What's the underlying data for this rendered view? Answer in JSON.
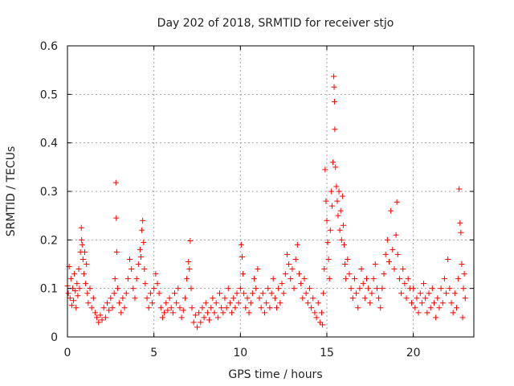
{
  "chart_data": {
    "type": "scatter",
    "title": "Day 202 of 2018, SRMTID for receiver stjo",
    "xlabel": "GPS time / hours",
    "ylabel": "SRMTID / TECUs",
    "xlim": [
      0,
      23.5
    ],
    "ylim": [
      0,
      0.6
    ],
    "x_ticks": [
      0,
      5,
      10,
      15,
      20
    ],
    "x_tick_labels": [
      "0",
      "5",
      "10",
      "15",
      "20"
    ],
    "y_ticks": [
      0,
      0.1,
      0.2,
      0.3,
      0.4,
      0.5,
      0.6
    ],
    "y_tick_labels": [
      "0",
      "0.1",
      "0.2",
      "0.3",
      "0.4",
      "0.5",
      "0.6"
    ],
    "grid": true,
    "marker": "plus",
    "series": [
      {
        "name": "SRMTID",
        "color": "#ff0000",
        "points": [
          [
            0.0,
            0.105
          ],
          [
            0.05,
            0.09
          ],
          [
            0.1,
            0.145
          ],
          [
            0.15,
            0.08
          ],
          [
            0.2,
            0.12
          ],
          [
            0.25,
            0.065
          ],
          [
            0.3,
            0.1
          ],
          [
            0.35,
            0.075
          ],
          [
            0.4,
            0.13
          ],
          [
            0.45,
            0.095
          ],
          [
            0.5,
            0.06
          ],
          [
            0.55,
            0.11
          ],
          [
            0.6,
            0.085
          ],
          [
            0.65,
            0.14
          ],
          [
            0.7,
            0.1
          ],
          [
            0.75,
            0.175
          ],
          [
            0.8,
            0.225
          ],
          [
            0.82,
            0.2
          ],
          [
            0.85,
            0.19
          ],
          [
            0.9,
            0.16
          ],
          [
            0.95,
            0.13
          ],
          [
            1.0,
            0.175
          ],
          [
            1.05,
            0.11
          ],
          [
            1.1,
            0.15
          ],
          [
            1.15,
            0.09
          ],
          [
            1.2,
            0.07
          ],
          [
            1.3,
            0.1
          ],
          [
            1.4,
            0.06
          ],
          [
            1.5,
            0.08
          ],
          [
            1.6,
            0.05
          ],
          [
            1.7,
            0.04
          ],
          [
            1.8,
            0.03
          ],
          [
            1.9,
            0.045
          ],
          [
            2.0,
            0.035
          ],
          [
            2.1,
            0.06
          ],
          [
            2.2,
            0.04
          ],
          [
            2.3,
            0.07
          ],
          [
            2.4,
            0.055
          ],
          [
            2.5,
            0.08
          ],
          [
            2.6,
            0.06
          ],
          [
            2.7,
            0.09
          ],
          [
            2.75,
            0.12
          ],
          [
            2.8,
            0.318
          ],
          [
            2.82,
            0.245
          ],
          [
            2.85,
            0.175
          ],
          [
            2.9,
            0.1
          ],
          [
            3.0,
            0.07
          ],
          [
            3.1,
            0.05
          ],
          [
            3.2,
            0.08
          ],
          [
            3.3,
            0.06
          ],
          [
            3.4,
            0.09
          ],
          [
            3.5,
            0.12
          ],
          [
            3.6,
            0.16
          ],
          [
            3.7,
            0.14
          ],
          [
            3.8,
            0.1
          ],
          [
            3.9,
            0.08
          ],
          [
            4.0,
            0.12
          ],
          [
            4.1,
            0.15
          ],
          [
            4.2,
            0.18
          ],
          [
            4.25,
            0.165
          ],
          [
            4.3,
            0.22
          ],
          [
            4.35,
            0.24
          ],
          [
            4.4,
            0.195
          ],
          [
            4.45,
            0.14
          ],
          [
            4.5,
            0.11
          ],
          [
            4.6,
            0.08
          ],
          [
            4.7,
            0.06
          ],
          [
            4.8,
            0.09
          ],
          [
            4.9,
            0.07
          ],
          [
            5.0,
            0.1
          ],
          [
            5.1,
            0.13
          ],
          [
            5.2,
            0.11
          ],
          [
            5.3,
            0.09
          ],
          [
            5.4,
            0.06
          ],
          [
            5.5,
            0.04
          ],
          [
            5.6,
            0.05
          ],
          [
            5.7,
            0.07
          ],
          [
            5.8,
            0.055
          ],
          [
            5.9,
            0.08
          ],
          [
            6.0,
            0.06
          ],
          [
            6.1,
            0.05
          ],
          [
            6.2,
            0.09
          ],
          [
            6.3,
            0.07
          ],
          [
            6.4,
            0.1
          ],
          [
            6.5,
            0.06
          ],
          [
            6.6,
            0.04
          ],
          [
            6.7,
            0.055
          ],
          [
            6.8,
            0.08
          ],
          [
            6.9,
            0.12
          ],
          [
            7.0,
            0.155
          ],
          [
            7.05,
            0.14
          ],
          [
            7.1,
            0.198
          ],
          [
            7.15,
            0.1
          ],
          [
            7.2,
            0.06
          ],
          [
            7.3,
            0.03
          ],
          [
            7.4,
            0.045
          ],
          [
            7.5,
            0.02
          ],
          [
            7.6,
            0.05
          ],
          [
            7.7,
            0.03
          ],
          [
            7.8,
            0.06
          ],
          [
            7.9,
            0.04
          ],
          [
            8.0,
            0.07
          ],
          [
            8.1,
            0.05
          ],
          [
            8.2,
            0.035
          ],
          [
            8.3,
            0.06
          ],
          [
            8.4,
            0.08
          ],
          [
            8.5,
            0.05
          ],
          [
            8.6,
            0.07
          ],
          [
            8.7,
            0.04
          ],
          [
            8.8,
            0.09
          ],
          [
            8.9,
            0.06
          ],
          [
            9.0,
            0.05
          ],
          [
            9.1,
            0.08
          ],
          [
            9.2,
            0.06
          ],
          [
            9.3,
            0.1
          ],
          [
            9.4,
            0.07
          ],
          [
            9.5,
            0.05
          ],
          [
            9.6,
            0.08
          ],
          [
            9.7,
            0.06
          ],
          [
            9.8,
            0.09
          ],
          [
            9.9,
            0.07
          ],
          [
            10.0,
            0.1
          ],
          [
            10.05,
            0.19
          ],
          [
            10.1,
            0.165
          ],
          [
            10.15,
            0.13
          ],
          [
            10.2,
            0.09
          ],
          [
            10.3,
            0.06
          ],
          [
            10.4,
            0.08
          ],
          [
            10.5,
            0.05
          ],
          [
            10.6,
            0.07
          ],
          [
            10.7,
            0.09
          ],
          [
            10.8,
            0.12
          ],
          [
            10.9,
            0.1
          ],
          [
            11.0,
            0.14
          ],
          [
            11.1,
            0.08
          ],
          [
            11.2,
            0.06
          ],
          [
            11.3,
            0.09
          ],
          [
            11.4,
            0.05
          ],
          [
            11.5,
            0.07
          ],
          [
            11.6,
            0.1
          ],
          [
            11.7,
            0.06
          ],
          [
            11.8,
            0.09
          ],
          [
            11.9,
            0.12
          ],
          [
            12.0,
            0.08
          ],
          [
            12.1,
            0.06
          ],
          [
            12.2,
            0.1
          ],
          [
            12.3,
            0.07
          ],
          [
            12.4,
            0.11
          ],
          [
            12.5,
            0.09
          ],
          [
            12.6,
            0.13
          ],
          [
            12.7,
            0.17
          ],
          [
            12.8,
            0.15
          ],
          [
            12.9,
            0.12
          ],
          [
            13.0,
            0.14
          ],
          [
            13.1,
            0.1
          ],
          [
            13.2,
            0.16
          ],
          [
            13.3,
            0.19
          ],
          [
            13.4,
            0.13
          ],
          [
            13.5,
            0.11
          ],
          [
            13.6,
            0.08
          ],
          [
            13.7,
            0.12
          ],
          [
            13.8,
            0.09
          ],
          [
            13.9,
            0.07
          ],
          [
            14.0,
            0.1
          ],
          [
            14.1,
            0.06
          ],
          [
            14.2,
            0.08
          ],
          [
            14.3,
            0.05
          ],
          [
            14.4,
            0.04
          ],
          [
            14.5,
            0.07
          ],
          [
            14.6,
            0.03
          ],
          [
            14.7,
            0.05
          ],
          [
            14.75,
            0.025
          ],
          [
            14.8,
            0.09
          ],
          [
            14.85,
            0.14
          ],
          [
            14.9,
            0.345
          ],
          [
            14.95,
            0.28
          ],
          [
            15.0,
            0.24
          ],
          [
            15.05,
            0.195
          ],
          [
            15.1,
            0.16
          ],
          [
            15.15,
            0.12
          ],
          [
            15.2,
            0.22
          ],
          [
            15.25,
            0.3
          ],
          [
            15.3,
            0.27
          ],
          [
            15.35,
            0.36
          ],
          [
            15.4,
            0.537
          ],
          [
            15.42,
            0.515
          ],
          [
            15.44,
            0.485
          ],
          [
            15.46,
            0.428
          ],
          [
            15.5,
            0.35
          ],
          [
            15.55,
            0.31
          ],
          [
            15.6,
            0.28
          ],
          [
            15.65,
            0.25
          ],
          [
            15.7,
            0.3
          ],
          [
            15.75,
            0.22
          ],
          [
            15.8,
            0.26
          ],
          [
            15.85,
            0.2
          ],
          [
            15.9,
            0.29
          ],
          [
            15.95,
            0.23
          ],
          [
            16.0,
            0.19
          ],
          [
            16.05,
            0.15
          ],
          [
            16.1,
            0.12
          ],
          [
            16.2,
            0.16
          ],
          [
            16.3,
            0.13
          ],
          [
            16.4,
            0.1
          ],
          [
            16.5,
            0.08
          ],
          [
            16.6,
            0.12
          ],
          [
            16.7,
            0.09
          ],
          [
            16.8,
            0.06
          ],
          [
            16.9,
            0.1
          ],
          [
            17.0,
            0.14
          ],
          [
            17.1,
            0.11
          ],
          [
            17.2,
            0.08
          ],
          [
            17.3,
            0.12
          ],
          [
            17.4,
            0.1
          ],
          [
            17.5,
            0.07
          ],
          [
            17.6,
            0.09
          ],
          [
            17.7,
            0.12
          ],
          [
            17.8,
            0.15
          ],
          [
            17.9,
            0.1
          ],
          [
            18.0,
            0.08
          ],
          [
            18.1,
            0.06
          ],
          [
            18.2,
            0.1
          ],
          [
            18.3,
            0.13
          ],
          [
            18.4,
            0.17
          ],
          [
            18.5,
            0.2
          ],
          [
            18.6,
            0.155
          ],
          [
            18.7,
            0.26
          ],
          [
            18.8,
            0.18
          ],
          [
            18.9,
            0.14
          ],
          [
            19.0,
            0.21
          ],
          [
            19.05,
            0.278
          ],
          [
            19.1,
            0.17
          ],
          [
            19.2,
            0.12
          ],
          [
            19.3,
            0.09
          ],
          [
            19.4,
            0.14
          ],
          [
            19.5,
            0.11
          ],
          [
            19.6,
            0.08
          ],
          [
            19.7,
            0.12
          ],
          [
            19.8,
            0.1
          ],
          [
            19.9,
            0.07
          ],
          [
            20.0,
            0.1
          ],
          [
            20.1,
            0.06
          ],
          [
            20.2,
            0.08
          ],
          [
            20.3,
            0.05
          ],
          [
            20.4,
            0.09
          ],
          [
            20.5,
            0.07
          ],
          [
            20.6,
            0.11
          ],
          [
            20.7,
            0.08
          ],
          [
            20.8,
            0.05
          ],
          [
            20.9,
            0.09
          ],
          [
            21.0,
            0.06
          ],
          [
            21.1,
            0.1
          ],
          [
            21.2,
            0.07
          ],
          [
            21.3,
            0.04
          ],
          [
            21.4,
            0.08
          ],
          [
            21.5,
            0.06
          ],
          [
            21.6,
            0.1
          ],
          [
            21.7,
            0.07
          ],
          [
            21.8,
            0.12
          ],
          [
            21.9,
            0.09
          ],
          [
            22.0,
            0.16
          ],
          [
            22.1,
            0.1
          ],
          [
            22.2,
            0.07
          ],
          [
            22.3,
            0.05
          ],
          [
            22.4,
            0.09
          ],
          [
            22.5,
            0.06
          ],
          [
            22.6,
            0.12
          ],
          [
            22.65,
            0.305
          ],
          [
            22.7,
            0.235
          ],
          [
            22.75,
            0.215
          ],
          [
            22.8,
            0.15
          ],
          [
            22.85,
            0.04
          ],
          [
            22.9,
            0.1
          ],
          [
            22.95,
            0.13
          ],
          [
            23.0,
            0.08
          ]
        ]
      }
    ]
  }
}
